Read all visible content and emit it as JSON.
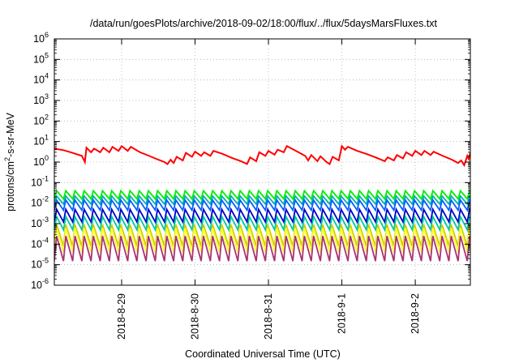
{
  "chart_data": {
    "type": "line",
    "title": "/data/run/goesPlots/archive/2018-09-02/18:00/flux/../flux/5daysMarsFluxes.txt",
    "xlabel": "Coordinated Universal Time (UTC)",
    "ylabel_parts": [
      "protons/cm",
      "2",
      "-s-sr-MeV"
    ],
    "y_scale": "log",
    "ylim_exp": [
      -6,
      6
    ],
    "y_ticks": [
      {
        "base": "10",
        "exp": "-6"
      },
      {
        "base": "10",
        "exp": "-5"
      },
      {
        "base": "10",
        "exp": "-4"
      },
      {
        "base": "10",
        "exp": "-3"
      },
      {
        "base": "10",
        "exp": "-2"
      },
      {
        "base": "10",
        "exp": "-1"
      },
      {
        "base": "10",
        "exp": "0"
      },
      {
        "base": "10",
        "exp": "1"
      },
      {
        "base": "10",
        "exp": "2"
      },
      {
        "base": "10",
        "exp": "3"
      },
      {
        "base": "10",
        "exp": "4"
      },
      {
        "base": "10",
        "exp": "5"
      },
      {
        "base": "10",
        "exp": "6"
      }
    ],
    "x_start": "2018-08-28 02:00",
    "x_end": "2018-09-02 18:00",
    "x_ticks": [
      {
        "label": "2018-8-29",
        "time": "2018-08-29 00:00"
      },
      {
        "label": "2018-8-30",
        "time": "2018-08-30 00:00"
      },
      {
        "label": "2018-8-31",
        "time": "2018-08-31 00:00"
      },
      {
        "label": "2018-9-1",
        "time": "2018-09-01 00:00"
      },
      {
        "label": "2018-9-2",
        "time": "2018-09-02 00:00"
      }
    ],
    "grid": true,
    "sawtooth_period_hours": 3,
    "series": [
      {
        "color": "#ff0000",
        "values": [
          [
            "2018-08-28 02:00",
            4.5
          ],
          [
            "2018-08-28 05:00",
            3.8
          ],
          [
            "2018-08-28 08:00",
            2.8
          ],
          [
            "2018-08-28 11:00",
            2.0
          ],
          [
            "2018-08-28 12:00",
            1.0
          ],
          [
            "2018-08-28 12:30",
            5.0
          ],
          [
            "2018-08-28 14:00",
            3.0
          ],
          [
            "2018-08-28 15:00",
            4.5
          ],
          [
            "2018-08-28 17:00",
            3.0
          ],
          [
            "2018-08-28 18:00",
            5.0
          ],
          [
            "2018-08-28 20:00",
            3.0
          ],
          [
            "2018-08-28 21:00",
            5.5
          ],
          [
            "2018-08-28 23:00",
            3.5
          ],
          [
            "2018-08-29 00:00",
            6.0
          ],
          [
            "2018-08-29 02:00",
            3.5
          ],
          [
            "2018-08-29 03:00",
            5.5
          ],
          [
            "2018-08-29 06:00",
            3.0
          ],
          [
            "2018-08-29 09:00",
            2.0
          ],
          [
            "2018-08-29 12:00",
            1.3
          ],
          [
            "2018-08-29 14:00",
            1.0
          ],
          [
            "2018-08-29 15:00",
            0.8
          ],
          [
            "2018-08-29 16:00",
            1.3
          ],
          [
            "2018-08-29 17:00",
            0.9
          ],
          [
            "2018-08-29 18:00",
            1.8
          ],
          [
            "2018-08-29 20:00",
            1.2
          ],
          [
            "2018-08-29 21:00",
            2.8
          ],
          [
            "2018-08-29 23:00",
            1.8
          ],
          [
            "2018-08-30 00:00",
            3.2
          ],
          [
            "2018-08-30 02:00",
            2.0
          ],
          [
            "2018-08-30 03:00",
            3.0
          ],
          [
            "2018-08-30 05:00",
            2.0
          ],
          [
            "2018-08-30 06:00",
            3.5
          ],
          [
            "2018-08-30 09:00",
            2.5
          ],
          [
            "2018-08-30 12:00",
            1.6
          ],
          [
            "2018-08-30 15:00",
            1.1
          ],
          [
            "2018-08-30 17:00",
            0.8
          ],
          [
            "2018-08-30 18:00",
            1.7
          ],
          [
            "2018-08-30 20:00",
            1.1
          ],
          [
            "2018-08-30 21:00",
            3.0
          ],
          [
            "2018-08-30 23:00",
            2.0
          ],
          [
            "2018-08-31 00:00",
            3.5
          ],
          [
            "2018-08-31 02:00",
            2.3
          ],
          [
            "2018-08-31 03:00",
            4.0
          ],
          [
            "2018-08-31 05:00",
            3.0
          ],
          [
            "2018-08-31 06:00",
            6.0
          ],
          [
            "2018-08-31 09:00",
            3.5
          ],
          [
            "2018-08-31 12:00",
            2.0
          ],
          [
            "2018-08-31 13:00",
            1.2
          ],
          [
            "2018-08-31 14:00",
            2.2
          ],
          [
            "2018-08-31 16:00",
            1.1
          ],
          [
            "2018-08-31 17:00",
            1.9
          ],
          [
            "2018-08-31 19:00",
            1.0
          ],
          [
            "2018-08-31 20:00",
            0.8
          ],
          [
            "2018-08-31 21:00",
            1.8
          ],
          [
            "2018-08-31 23:00",
            1.2
          ],
          [
            "2018-09-01 00:00",
            6.0
          ],
          [
            "2018-09-01 01:00",
            4.0
          ],
          [
            "2018-09-01 02:00",
            5.5
          ],
          [
            "2018-09-01 05:00",
            3.5
          ],
          [
            "2018-09-01 08:00",
            2.5
          ],
          [
            "2018-09-01 11:00",
            1.7
          ],
          [
            "2018-09-01 14:00",
            1.1
          ],
          [
            "2018-09-01 15:00",
            1.7
          ],
          [
            "2018-09-01 17:00",
            1.2
          ],
          [
            "2018-09-01 18:00",
            2.2
          ],
          [
            "2018-09-01 20:00",
            1.5
          ],
          [
            "2018-09-01 21:00",
            3.0
          ],
          [
            "2018-09-01 23:00",
            2.0
          ],
          [
            "2018-09-02 00:00",
            3.5
          ],
          [
            "2018-09-02 02:00",
            2.2
          ],
          [
            "2018-09-02 03:00",
            3.5
          ],
          [
            "2018-09-02 05:00",
            2.2
          ],
          [
            "2018-09-02 06:00",
            3.2
          ],
          [
            "2018-09-02 09:00",
            2.0
          ],
          [
            "2018-09-02 12:00",
            1.3
          ],
          [
            "2018-09-02 14:00",
            0.9
          ],
          [
            "2018-09-02 15:00",
            1.2
          ],
          [
            "2018-09-02 16:00",
            0.7
          ],
          [
            "2018-09-02 17:00",
            2.0
          ],
          [
            "2018-09-02 17:30",
            1.4
          ],
          [
            "2018-09-02 18:00",
            3.0
          ]
        ]
      },
      {
        "color": "#00ee00",
        "sawtooth": {
          "high": 0.04,
          "low": 0.016
        }
      },
      {
        "color": "#00b0b0",
        "sawtooth": {
          "high": 0.022,
          "low": 0.009
        }
      },
      {
        "color": "#0060ff",
        "sawtooth": {
          "high": 0.014,
          "low": 0.0045
        }
      },
      {
        "color": "#0000cc",
        "sawtooth": {
          "high": 0.005,
          "low": 0.0012
        }
      },
      {
        "color": "#00c8a0",
        "sawtooth": {
          "high": 0.0022,
          "low": 0.0005
        }
      },
      {
        "color": "#cccc00",
        "sawtooth": {
          "high": 0.0009,
          "low": 8e-05
        }
      },
      {
        "color": "#ffff33",
        "sawtooth": {
          "high": 0.0006,
          "low": 4e-05
        }
      },
      {
        "color": "#aa3377",
        "sawtooth": {
          "high": 0.00025,
          "low": 1.5e-05
        }
      }
    ]
  }
}
